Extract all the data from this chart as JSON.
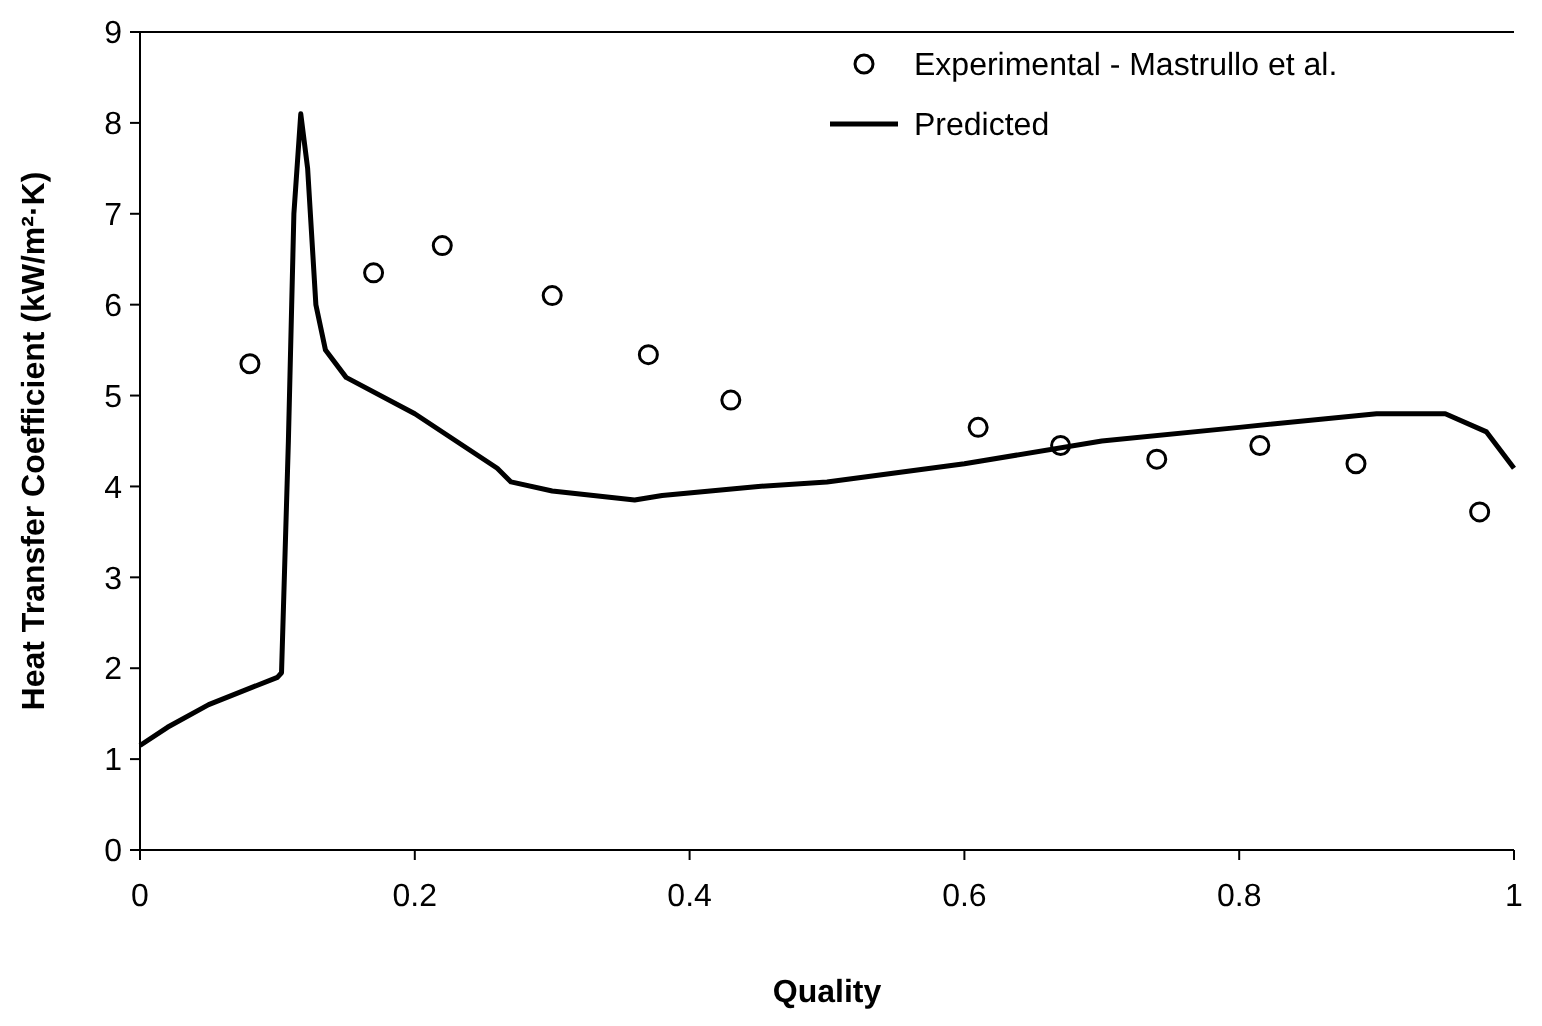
{
  "chart_data": {
    "type": "line",
    "xlabel": "Quality",
    "ylabel": "Heat Transfer Coefficient (kW/m²·K)",
    "xlim": [
      0,
      1
    ],
    "ylim": [
      0,
      9
    ],
    "xticks": [
      0,
      {
        "value": 0.2,
        "label": "0.2"
      },
      {
        "value": 0.4,
        "label": "0.4"
      },
      {
        "value": 0.6,
        "label": "0.6"
      },
      {
        "value": 0.8,
        "label": "0.8"
      },
      1
    ],
    "yticks": [
      0,
      1,
      2,
      3,
      4,
      5,
      6,
      7,
      8,
      9
    ],
    "grid": false,
    "legend": "top right",
    "series": [
      {
        "name": "Experimental - Mastrullo et al.",
        "type": "scatter",
        "marker": "circle",
        "color": "#000000",
        "x": [
          0.08,
          0.17,
          0.22,
          0.3,
          0.37,
          0.43,
          0.61,
          0.67,
          0.74,
          0.815,
          0.885,
          0.975
        ],
        "values": [
          5.35,
          6.35,
          6.65,
          6.1,
          5.45,
          4.95,
          4.65,
          4.45,
          4.3,
          4.45,
          4.25,
          3.72
        ]
      },
      {
        "name": "Predicted",
        "marker": "none",
        "line_style": "solid",
        "color": "#000000",
        "x": [
          0,
          0.02,
          0.05,
          0.1,
          0.103,
          0.108,
          0.112,
          0.117,
          0.122,
          0.128,
          0.135,
          0.15,
          0.2,
          0.26,
          0.27,
          0.3,
          0.36,
          0.38,
          0.45,
          0.5,
          0.6,
          0.7,
          0.8,
          0.9,
          0.95,
          0.98,
          1.0
        ],
        "values": [
          1.15,
          1.35,
          1.6,
          1.9,
          1.95,
          4.5,
          7.0,
          8.1,
          7.5,
          6.0,
          5.5,
          5.2,
          4.8,
          4.2,
          4.05,
          3.95,
          3.85,
          3.9,
          4.0,
          4.05,
          4.25,
          4.5,
          4.65,
          4.8,
          4.8,
          4.6,
          4.2
        ]
      }
    ]
  }
}
